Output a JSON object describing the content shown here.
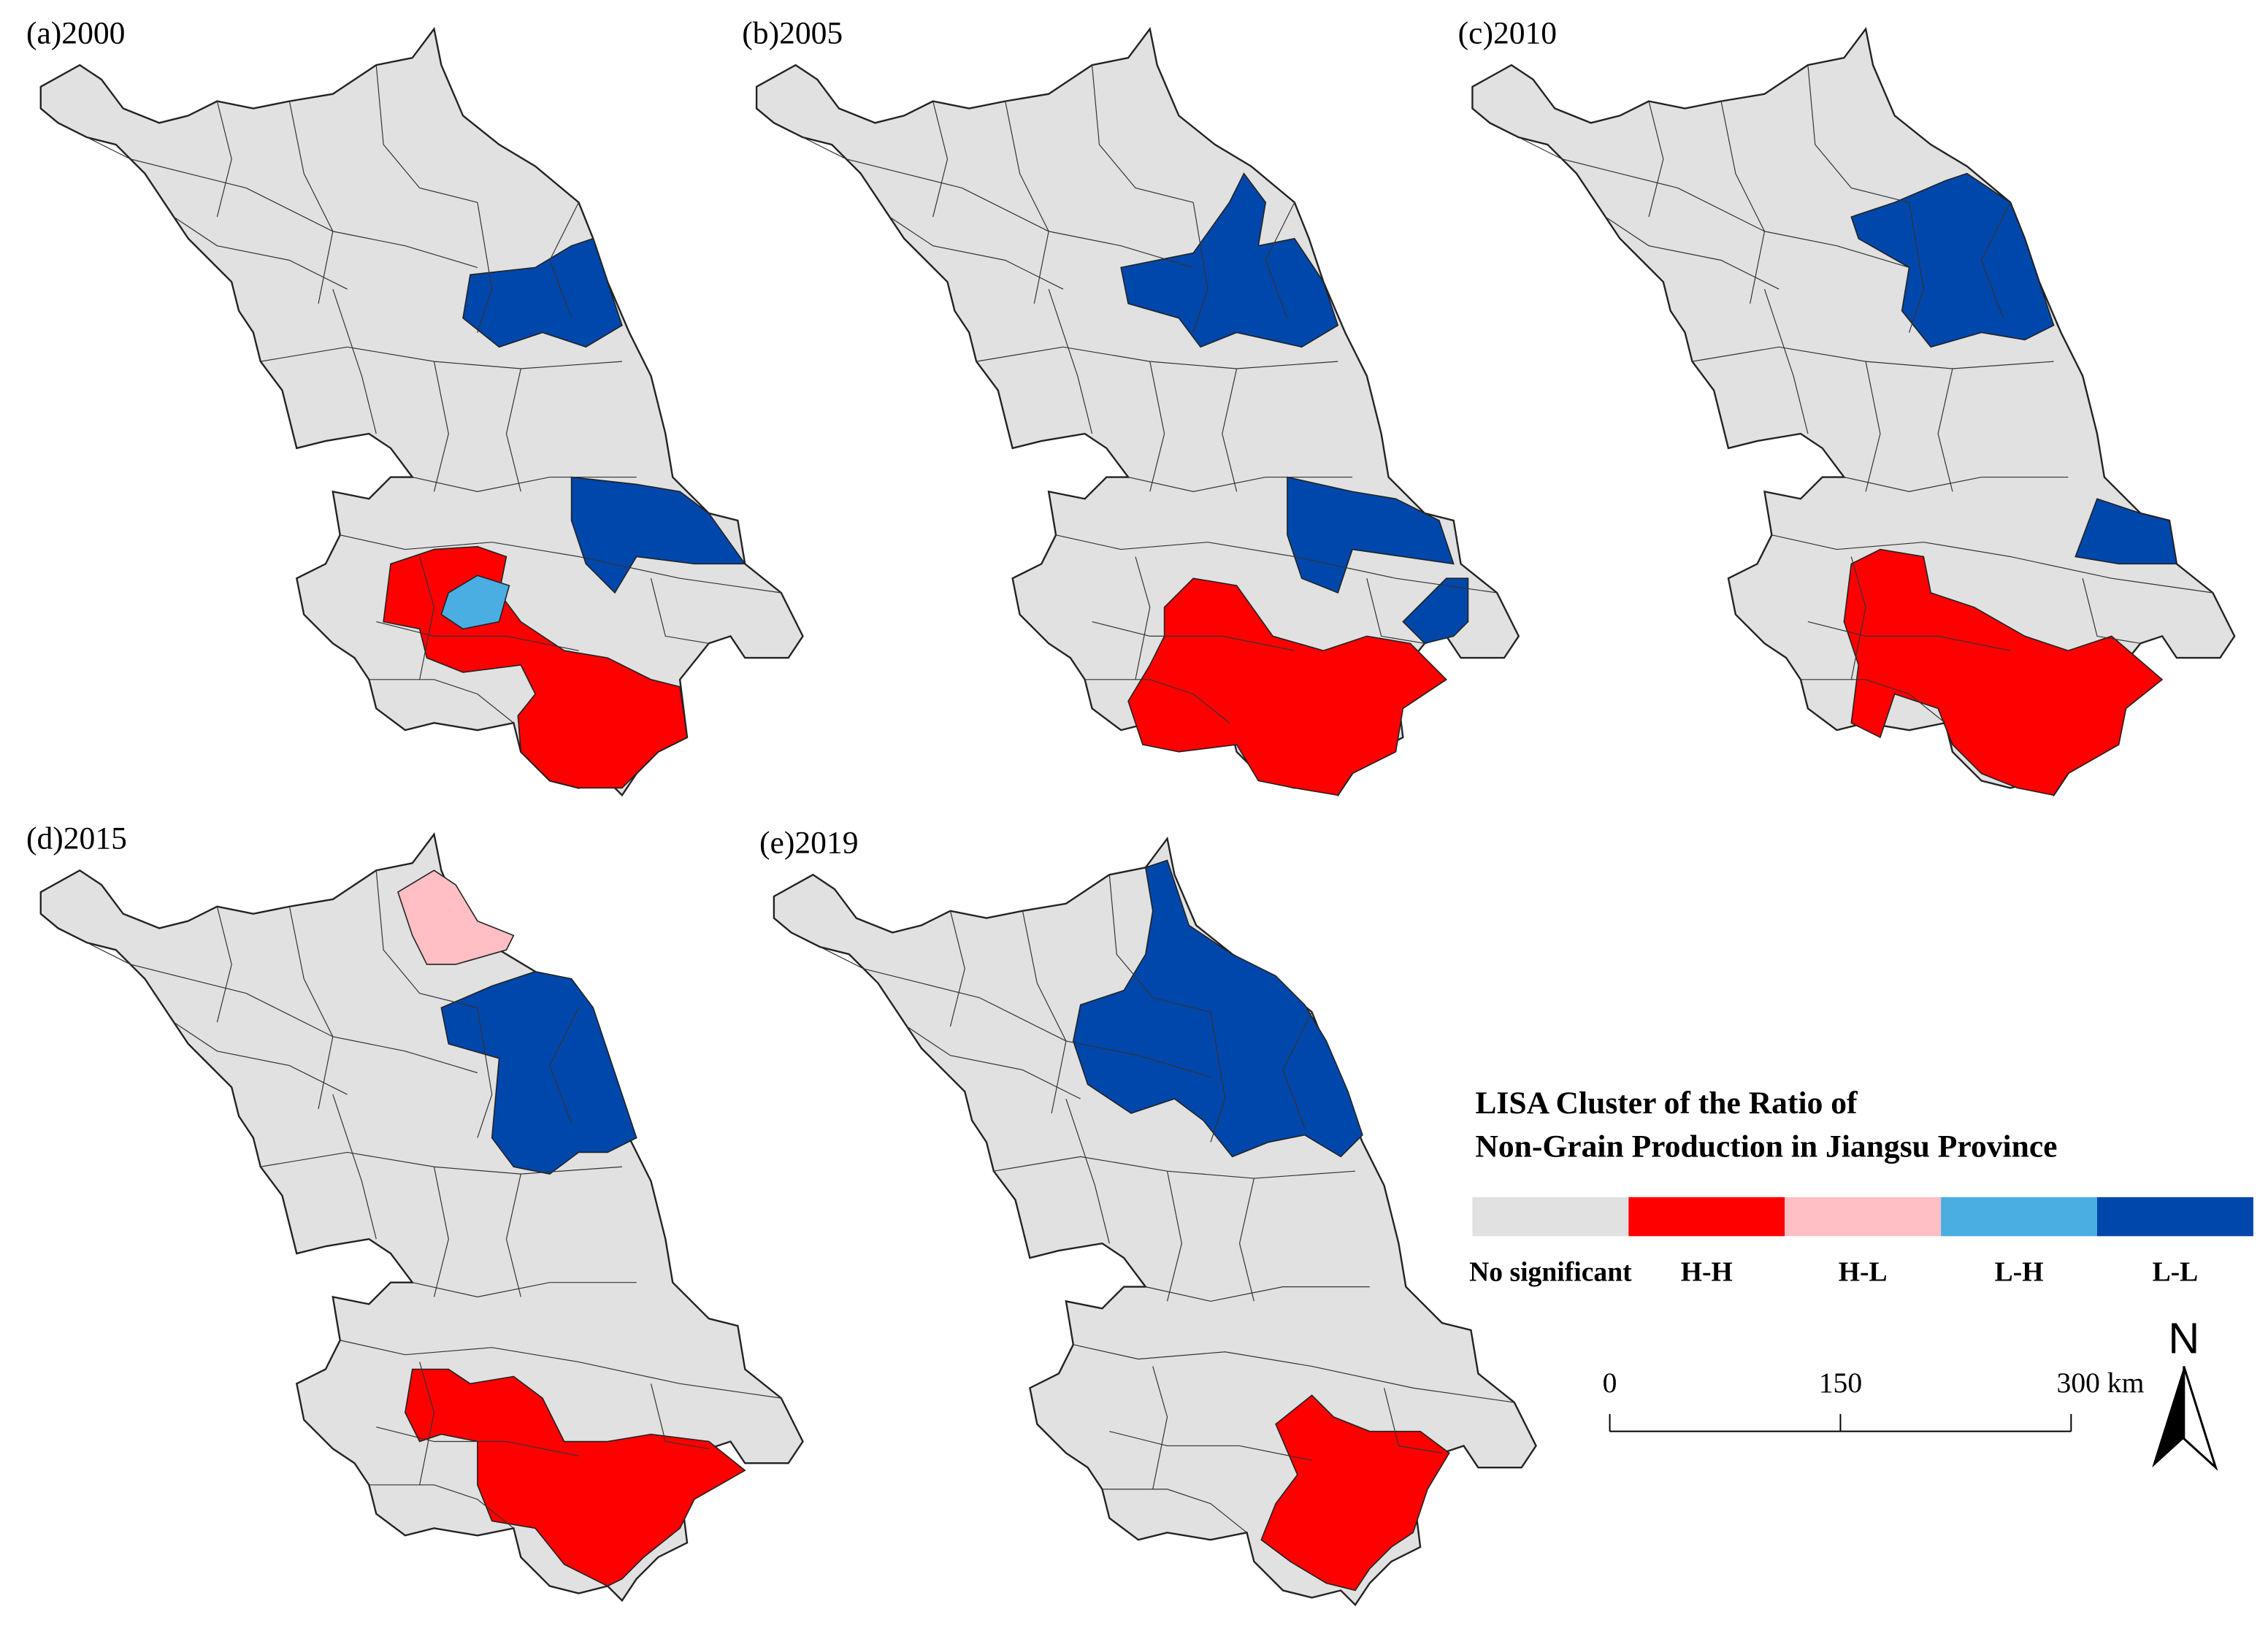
{
  "panels": [
    {
      "label": "(a)2000"
    },
    {
      "label": "(b)2005"
    },
    {
      "label": "(c)2010"
    },
    {
      "label": "(d)2015"
    },
    {
      "label": "(e)2019"
    }
  ],
  "legend": {
    "title": [
      "LISA Cluster of  the Ratio of",
      "Non-Grain Production in Jiangsu Province"
    ],
    "items": [
      {
        "label": "No significant",
        "color": "#e1e1e1"
      },
      {
        "label": "H-H",
        "color": "#ff0000"
      },
      {
        "label": "H-L",
        "color": "#ffbfc4"
      },
      {
        "label": "L-H",
        "color": "#4aaee2"
      },
      {
        "label": "L-L",
        "color": "#0047ab"
      }
    ]
  },
  "scale_bar": {
    "ticks": [
      0,
      150,
      {
        "value": 300,
        "label": "300 km"
      }
    ]
  },
  "north": "N"
}
